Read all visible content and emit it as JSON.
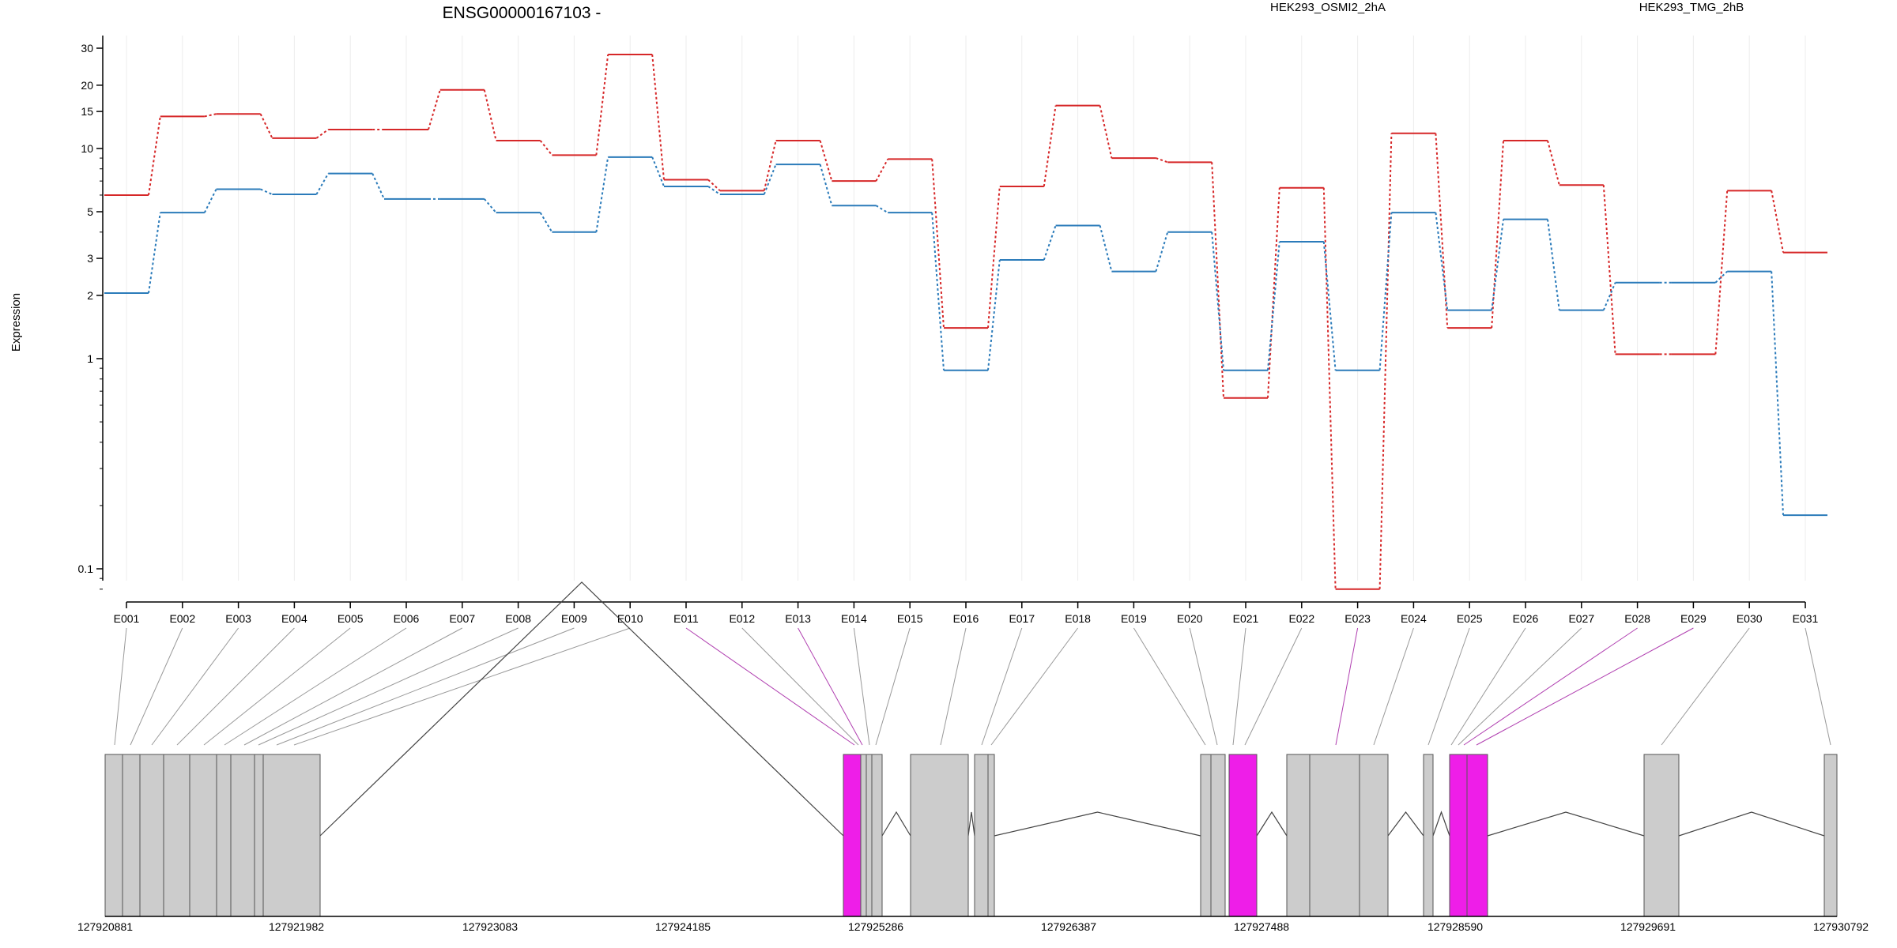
{
  "chart_data": {
    "type": "line",
    "title": "ENSG00000167103 -",
    "xlabel": "",
    "ylabel": "Expression",
    "yscale": "log",
    "ylim": [
      0.07,
      40
    ],
    "yticks": [
      0.1,
      1,
      2,
      3,
      5,
      10,
      15,
      20,
      30
    ],
    "grid": true,
    "legend_placement": "top-right",
    "categories": [
      "E001",
      "E002",
      "E003",
      "E004",
      "E005",
      "E006",
      "E007",
      "E008",
      "E009",
      "E010",
      "E011",
      "E012",
      "E013",
      "E014",
      "E015",
      "E016",
      "E017",
      "E018",
      "E019",
      "E020",
      "E021",
      "E022",
      "E023",
      "E024",
      "E025",
      "E026",
      "E027",
      "E028",
      "E029",
      "E030",
      "E031"
    ],
    "series": [
      {
        "name": "HEK293_OSMI2_2hA",
        "color": "#d62728",
        "values": [
          6.0,
          14.2,
          14.6,
          11.2,
          12.3,
          12.3,
          19.0,
          10.9,
          9.3,
          28.0,
          7.1,
          6.3,
          10.9,
          7.0,
          8.9,
          1.4,
          6.6,
          16.0,
          9.0,
          8.6,
          0.65,
          6.5,
          0.08,
          11.8,
          1.4,
          10.9,
          6.7,
          1.05,
          1.05,
          6.3,
          3.2
        ]
      },
      {
        "name": "HEK293_TMG_2hB",
        "color": "#2b7bba",
        "values": [
          2.05,
          4.95,
          6.4,
          6.05,
          7.6,
          5.75,
          5.75,
          4.95,
          4.0,
          9.1,
          6.6,
          6.05,
          8.4,
          5.35,
          4.95,
          0.88,
          2.95,
          4.3,
          2.6,
          4.0,
          0.88,
          3.6,
          0.88,
          4.95,
          1.7,
          4.6,
          1.7,
          2.3,
          2.3,
          2.6,
          0.18
        ]
      }
    ],
    "gene_model": {
      "coordinate_ticks": [
        "127920881",
        "127921982",
        "127923083",
        "127924185",
        "127925286",
        "127926387",
        "127927488",
        "127928590",
        "127929691",
        "127930792"
      ],
      "highlight_color": "#ee1ee8",
      "exon_color": "#cccccc",
      "highlighted_exons": [
        "E011",
        "E013",
        "E023",
        "E028",
        "E029"
      ]
    }
  }
}
